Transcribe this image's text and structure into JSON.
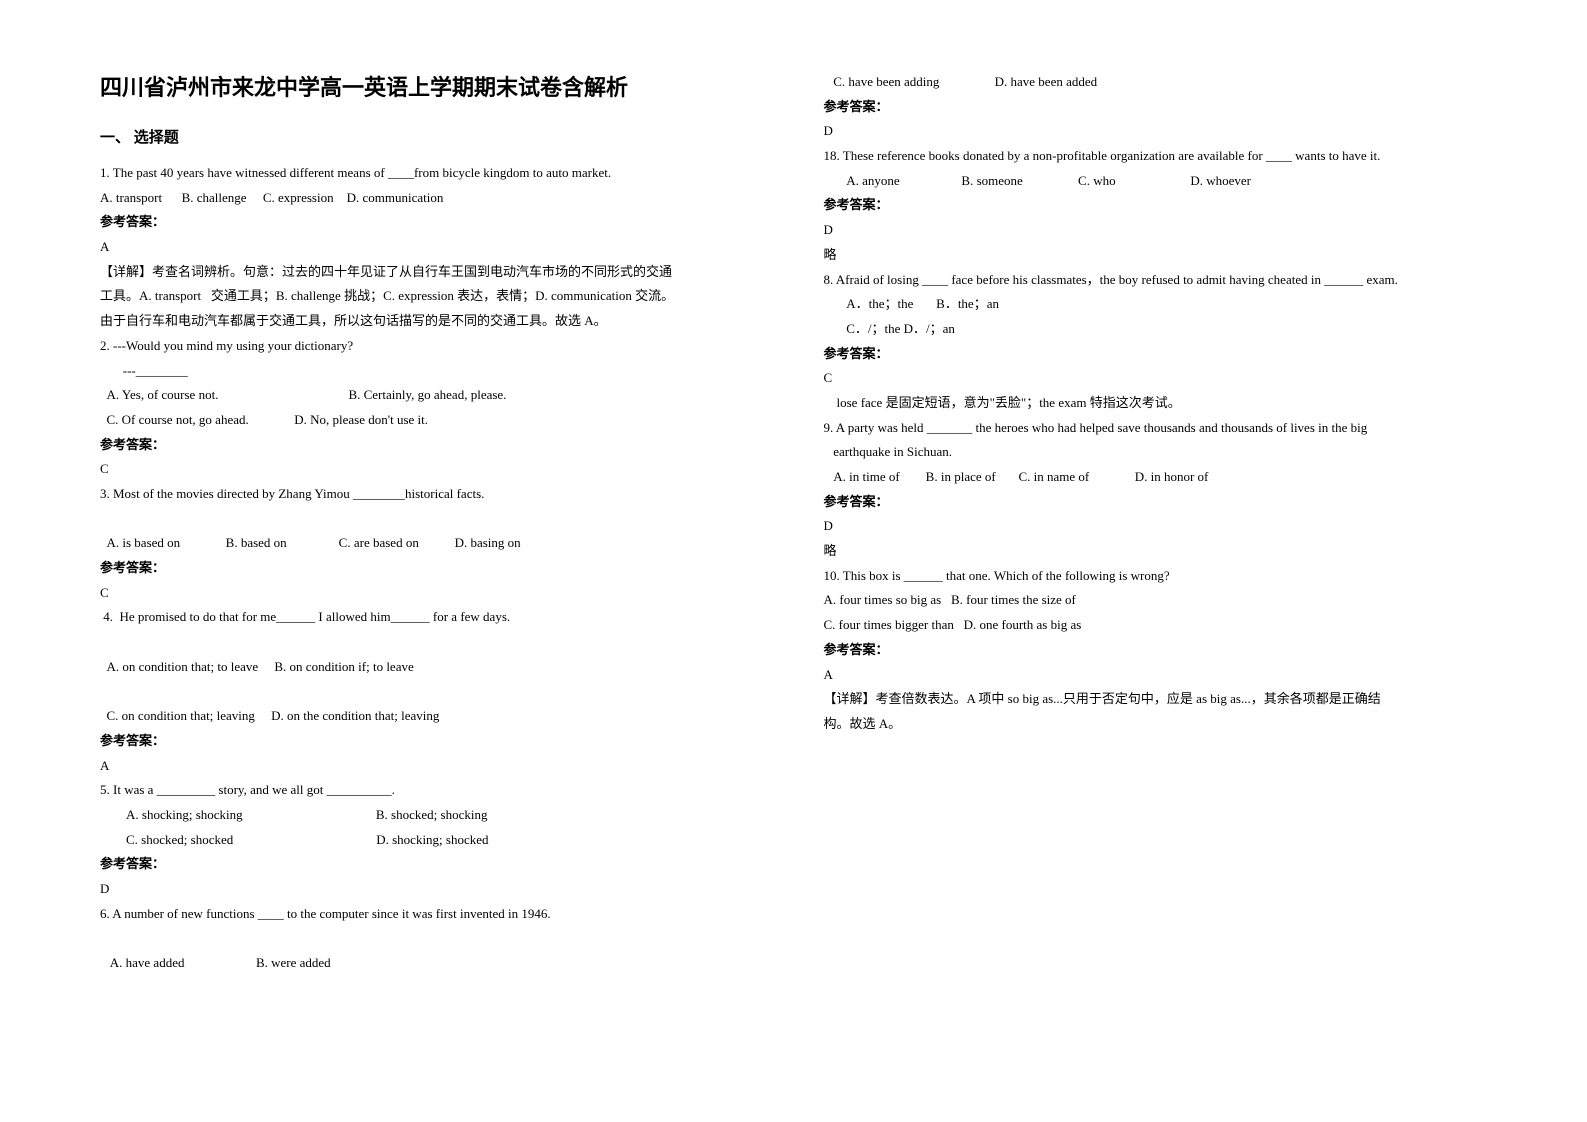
{
  "title": "四川省泸州市来龙中学高一英语上学期期末试卷含解析",
  "section_title": "一、 选择题",
  "colors": {
    "text": "#000000",
    "background": "#ffffff"
  },
  "typography": {
    "title_fontsize": 22,
    "section_fontsize": 15,
    "body_fontsize": 13,
    "line_height": 1.9,
    "font_family": "SimSun"
  },
  "left_lines": [
    {
      "t": "1. The past 40 years have witnessed different means of ____from bicycle kingdom to auto market."
    },
    {
      "t": "A. transport      B. challenge     C. expression    D. communication"
    },
    {
      "t": "参考答案：",
      "bold": true
    },
    {
      "t": "A"
    },
    {
      "t": "【详解】考查名词辨析。句意：过去的四十年见证了从自行车王国到电动汽车市场的不同形式的交通"
    },
    {
      "t": "工具。A. transport   交通工具；B. challenge 挑战；C. expression 表达，表情；D. communication 交流。"
    },
    {
      "t": "由于自行车和电动汽车都属于交通工具，所以这句话描写的是不同的交通工具。故选 A。"
    },
    {
      "t": "2. ---Would you mind my using your dictionary?"
    },
    {
      "t": "       ---________"
    },
    {
      "t": "  A. Yes, of course not.                                        B. Certainly, go ahead, please."
    },
    {
      "t": "  C. Of course not, go ahead.              D. No, please don't use it."
    },
    {
      "t": "参考答案：",
      "bold": true
    },
    {
      "t": "C"
    },
    {
      "t": "3. Most of the movies directed by Zhang Yimou ________historical facts."
    },
    {
      "t": " "
    },
    {
      "t": "  A. is based on              B. based on                C. are based on           D. basing on"
    },
    {
      "t": "参考答案：",
      "bold": true
    },
    {
      "t": "C"
    },
    {
      "t": " 4.  He promised to do that for me______ I allowed him______ for a few days."
    },
    {
      "t": " "
    },
    {
      "t": "  A. on condition that; to leave     B. on condition if; to leave"
    },
    {
      "t": " "
    },
    {
      "t": "  C. on condition that; leaving     D. on the condition that; leaving"
    },
    {
      "t": "参考答案：",
      "bold": true
    },
    {
      "t": "A"
    },
    {
      "t": "5. It was a _________ story, and we all got __________."
    },
    {
      "t": "        A. shocking; shocking                                         B. shocked; shocking"
    },
    {
      "t": "        C. shocked; shocked                                            D. shocking; shocked"
    },
    {
      "t": "参考答案：",
      "bold": true
    },
    {
      "t": "D"
    },
    {
      "t": "6. A number of new functions ____ to the computer since it was first invented in 1946."
    },
    {
      "t": " "
    },
    {
      "t": "   A. have added                      B. were added"
    }
  ],
  "right_lines": [
    {
      "t": "   C. have been adding                 D. have been added"
    },
    {
      "t": "参考答案：",
      "bold": true
    },
    {
      "t": "D"
    },
    {
      "t": "18. These reference books donated by a non-profitable organization are available for ____ wants to have it."
    },
    {
      "t": "       A. anyone                   B. someone                 C. who                       D. whoever"
    },
    {
      "t": "参考答案：",
      "bold": true
    },
    {
      "t": "D"
    },
    {
      "t": "略"
    },
    {
      "t": "8. Afraid of losing ____ face before his classmates，the boy refused to admit having cheated in ______ exam."
    },
    {
      "t": "       A．the；the       B．the；an"
    },
    {
      "t": "       C．/；the D．/；an"
    },
    {
      "t": "参考答案：",
      "bold": true
    },
    {
      "t": "C"
    },
    {
      "t": "    lose face 是固定短语，意为\"丢脸\"；the exam 特指这次考试。"
    },
    {
      "t": "9. A party was held _______ the heroes who had helped save thousands and thousands of lives in the big"
    },
    {
      "t": "   earthquake in Sichuan."
    },
    {
      "t": "   A. in time of        B. in place of       C. in name of              D. in honor of"
    },
    {
      "t": "参考答案：",
      "bold": true
    },
    {
      "t": "D"
    },
    {
      "t": "略"
    },
    {
      "t": "10. This box is ______ that one. Which of the following is wrong?"
    },
    {
      "t": "A. four times so big as   B. four times the size of"
    },
    {
      "t": "C. four times bigger than   D. one fourth as big as"
    },
    {
      "t": "参考答案：",
      "bold": true
    },
    {
      "t": "A"
    },
    {
      "t": "【详解】考查倍数表达。A 项中 so big as...只用于否定句中，应是 as big as...，其余各项都是正确结"
    },
    {
      "t": "构。故选 A。"
    }
  ]
}
